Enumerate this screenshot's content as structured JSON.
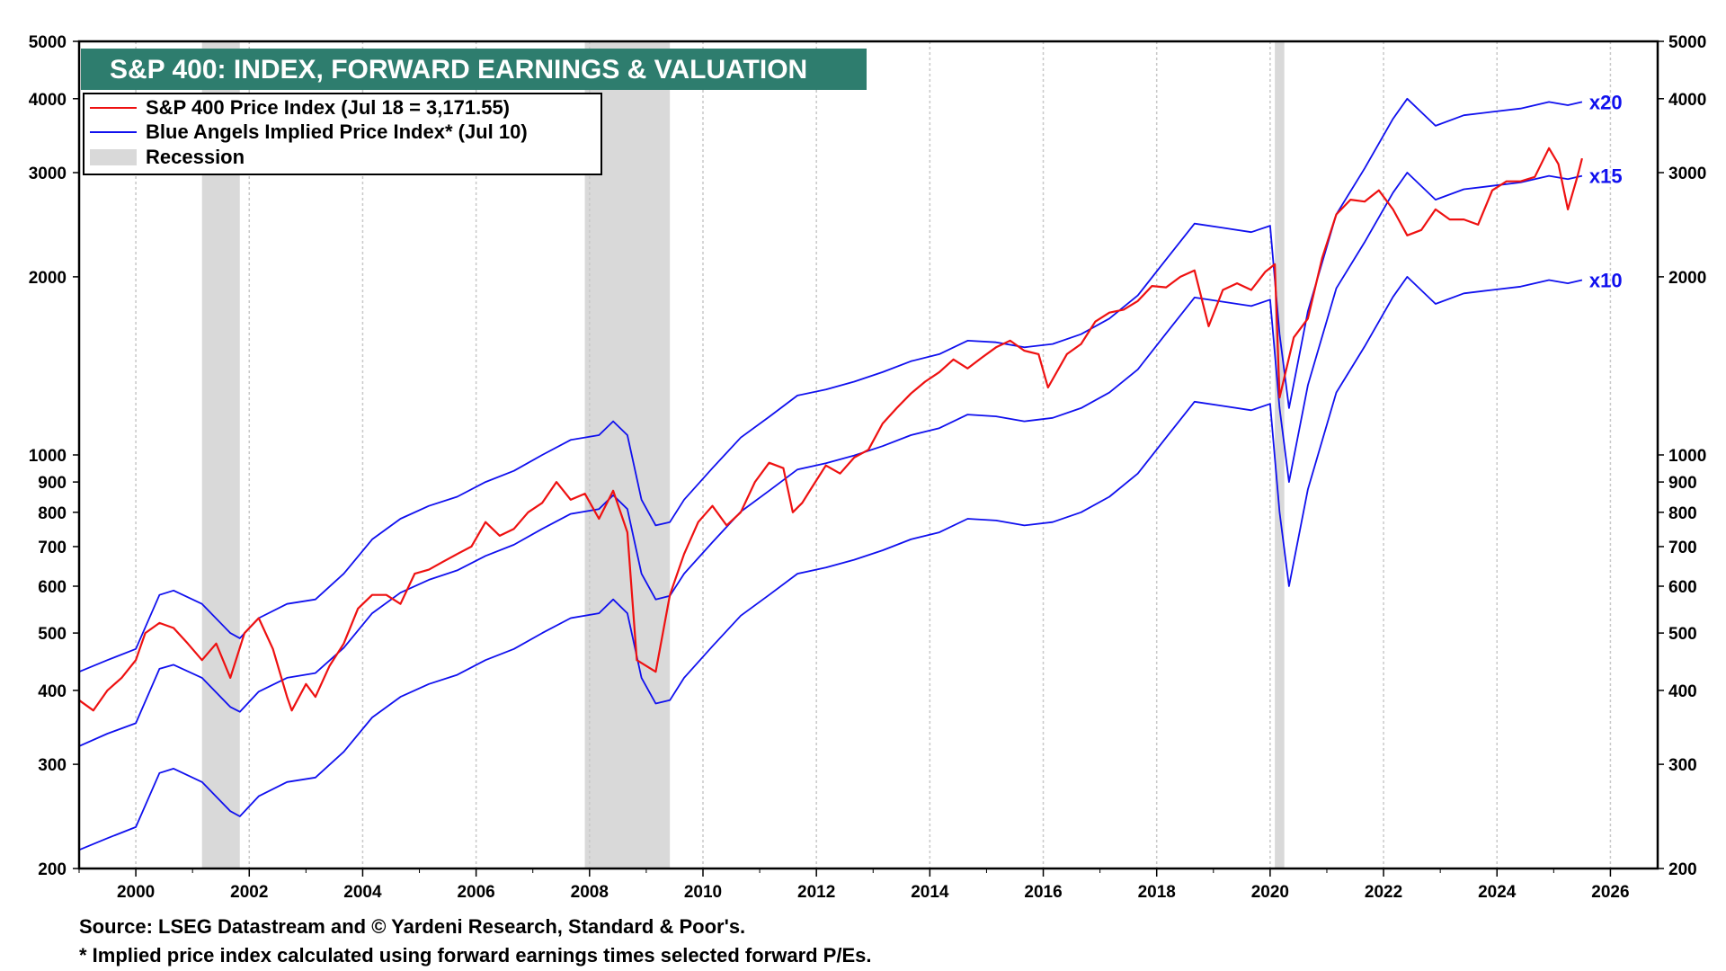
{
  "title": "S&P 400: INDEX, FORWARD EARNINGS & VALUATION",
  "colors": {
    "title_bg": "#2e7d6e",
    "price": "#ee1111",
    "implied": "#1010ee",
    "recession": "#d9d9d9",
    "grid": "#c8c8c8"
  },
  "legend": {
    "price_label": "S&P 400 Price Index (Jul 18 = 3,171.55)",
    "implied_label": "Blue Angels Implied Price Index* (Jul 10)",
    "recession_label": "Recession"
  },
  "footnotes": {
    "source": "Source: LSEG Datastream and © Yardeni Research, Standard & Poor's.",
    "note": "* Implied price index calculated using forward earnings times selected forward P/Es."
  },
  "chart_data": {
    "type": "line",
    "title": "S&P 400: INDEX, FORWARD EARNINGS & VALUATION",
    "y_scale": "log",
    "ylim": [
      200,
      5000
    ],
    "xlim": [
      "1999-01",
      "2026-11"
    ],
    "y_ticks": [
      200,
      300,
      400,
      500,
      600,
      700,
      800,
      900,
      1000,
      2000,
      3000,
      4000,
      5000
    ],
    "x_ticks": [
      "2000",
      "2002",
      "2004",
      "2006",
      "2008",
      "2010",
      "2012",
      "2014",
      "2016",
      "2018",
      "2020",
      "2022",
      "2024",
      "2026"
    ],
    "grid": "vertical",
    "legend_position": "top-left",
    "recessions": [
      {
        "start": "2001-03",
        "end": "2001-11"
      },
      {
        "start": "2007-12",
        "end": "2009-06"
      },
      {
        "start": "2020-02",
        "end": "2020-04"
      }
    ],
    "series": [
      {
        "name": "S&P 400 Price Index (Jul 18 = 3,171.55)",
        "x": [
          "1999-01",
          "1999-04",
          "1999-07",
          "1999-10",
          "2000-01",
          "2000-03",
          "2000-06",
          "2000-09",
          "2000-12",
          "2001-03",
          "2001-06",
          "2001-09",
          "2001-12",
          "2002-03",
          "2002-06",
          "2002-09",
          "2002-10",
          "2003-01",
          "2003-03",
          "2003-06",
          "2003-09",
          "2003-12",
          "2004-03",
          "2004-06",
          "2004-09",
          "2004-12",
          "2005-03",
          "2005-06",
          "2005-09",
          "2005-12",
          "2006-03",
          "2006-06",
          "2006-09",
          "2006-12",
          "2007-03",
          "2007-06",
          "2007-09",
          "2007-12",
          "2008-03",
          "2008-06",
          "2008-09",
          "2008-11",
          "2009-03",
          "2009-06",
          "2009-09",
          "2009-12",
          "2010-03",
          "2010-06",
          "2010-09",
          "2010-12",
          "2011-03",
          "2011-06",
          "2011-08",
          "2011-10",
          "2011-12",
          "2012-03",
          "2012-06",
          "2012-09",
          "2012-12",
          "2013-03",
          "2013-06",
          "2013-09",
          "2013-12",
          "2014-03",
          "2014-06",
          "2014-09",
          "2014-12",
          "2015-03",
          "2015-06",
          "2015-09",
          "2015-12",
          "2016-02",
          "2016-06",
          "2016-09",
          "2016-12",
          "2017-03",
          "2017-06",
          "2017-09",
          "2017-12",
          "2018-03",
          "2018-06",
          "2018-09",
          "2018-12",
          "2019-03",
          "2019-06",
          "2019-09",
          "2019-12",
          "2020-02",
          "2020-03",
          "2020-06",
          "2020-09",
          "2020-12",
          "2021-03",
          "2021-06",
          "2021-09",
          "2021-12",
          "2022-03",
          "2022-06",
          "2022-09",
          "2022-12",
          "2023-03",
          "2023-06",
          "2023-09",
          "2023-12",
          "2024-03",
          "2024-06",
          "2024-09",
          "2024-12",
          "2025-02",
          "2025-04",
          "2025-06",
          "2025-07"
        ],
        "y": [
          385,
          370,
          400,
          420,
          450,
          500,
          520,
          510,
          480,
          450,
          480,
          420,
          500,
          530,
          470,
          390,
          370,
          410,
          390,
          440,
          480,
          550,
          580,
          580,
          560,
          630,
          640,
          660,
          680,
          700,
          770,
          730,
          750,
          800,
          830,
          900,
          840,
          860,
          780,
          870,
          740,
          450,
          430,
          580,
          680,
          770,
          820,
          760,
          800,
          900,
          970,
          950,
          800,
          830,
          880,
          960,
          930,
          990,
          1020,
          1130,
          1200,
          1270,
          1330,
          1380,
          1450,
          1400,
          1460,
          1520,
          1560,
          1500,
          1480,
          1300,
          1480,
          1540,
          1680,
          1740,
          1760,
          1820,
          1930,
          1920,
          2000,
          2050,
          1650,
          1900,
          1950,
          1900,
          2040,
          2100,
          1250,
          1580,
          1700,
          2150,
          2550,
          2700,
          2680,
          2800,
          2600,
          2350,
          2400,
          2600,
          2500,
          2500,
          2450,
          2800,
          2900,
          2900,
          2950,
          3300,
          3100,
          2600,
          2950,
          3171.55
        ]
      },
      {
        "name": "Blue Angels Implied Price Index* (Jul 10) x20",
        "x": [
          "1999-01",
          "1999-07",
          "2000-01",
          "2000-06",
          "2000-09",
          "2001-03",
          "2001-09",
          "2001-11",
          "2002-03",
          "2002-09",
          "2003-03",
          "2003-09",
          "2004-03",
          "2004-09",
          "2005-03",
          "2005-09",
          "2006-03",
          "2006-09",
          "2007-03",
          "2007-09",
          "2008-03",
          "2008-06",
          "2008-09",
          "2008-12",
          "2009-03",
          "2009-06",
          "2009-09",
          "2010-03",
          "2010-09",
          "2011-03",
          "2011-09",
          "2012-03",
          "2012-09",
          "2013-03",
          "2013-09",
          "2014-03",
          "2014-09",
          "2015-03",
          "2015-09",
          "2016-03",
          "2016-09",
          "2017-03",
          "2017-09",
          "2018-03",
          "2018-09",
          "2019-03",
          "2019-09",
          "2020-01",
          "2020-03",
          "2020-05",
          "2020-09",
          "2021-03",
          "2021-09",
          "2022-03",
          "2022-06",
          "2022-12",
          "2023-06",
          "2023-12",
          "2024-06",
          "2024-12",
          "2025-04",
          "2025-07"
        ],
        "y": [
          430,
          450,
          470,
          580,
          590,
          560,
          500,
          490,
          530,
          560,
          570,
          630,
          720,
          780,
          820,
          850,
          900,
          940,
          1000,
          1060,
          1080,
          1140,
          1080,
          840,
          760,
          770,
          840,
          950,
          1070,
          1160,
          1260,
          1290,
          1330,
          1380,
          1440,
          1480,
          1560,
          1550,
          1520,
          1540,
          1600,
          1700,
          1860,
          2140,
          2460,
          2420,
          2380,
          2440,
          1600,
          1200,
          1750,
          2550,
          3050,
          3700,
          4000,
          3600,
          3750,
          3800,
          3850,
          3950,
          3900,
          3950
        ]
      },
      {
        "name": "Blue Angels Implied Price Index* (Jul 10) x15",
        "x": [
          "1999-01",
          "1999-07",
          "2000-01",
          "2000-06",
          "2000-09",
          "2001-03",
          "2001-09",
          "2001-11",
          "2002-03",
          "2002-09",
          "2003-03",
          "2003-09",
          "2004-03",
          "2004-09",
          "2005-03",
          "2005-09",
          "2006-03",
          "2006-09",
          "2007-03",
          "2007-09",
          "2008-03",
          "2008-06",
          "2008-09",
          "2008-12",
          "2009-03",
          "2009-06",
          "2009-09",
          "2010-03",
          "2010-09",
          "2011-03",
          "2011-09",
          "2012-03",
          "2012-09",
          "2013-03",
          "2013-09",
          "2014-03",
          "2014-09",
          "2015-03",
          "2015-09",
          "2016-03",
          "2016-09",
          "2017-03",
          "2017-09",
          "2018-03",
          "2018-09",
          "2019-03",
          "2019-09",
          "2020-01",
          "2020-03",
          "2020-05",
          "2020-09",
          "2021-03",
          "2021-09",
          "2022-03",
          "2022-06",
          "2022-12",
          "2023-06",
          "2023-12",
          "2024-06",
          "2024-12",
          "2025-04",
          "2025-07"
        ],
        "y": [
          322,
          338,
          352,
          435,
          442,
          420,
          375,
          368,
          398,
          420,
          428,
          472,
          540,
          585,
          615,
          638,
          675,
          705,
          750,
          795,
          810,
          855,
          810,
          630,
          570,
          578,
          630,
          712,
          802,
          870,
          945,
          968,
          998,
          1035,
          1080,
          1110,
          1170,
          1162,
          1140,
          1155,
          1200,
          1275,
          1395,
          1605,
          1845,
          1815,
          1785,
          1830,
          1200,
          900,
          1312,
          1912,
          2288,
          2775,
          3000,
          2700,
          2812,
          2850,
          2888,
          2962,
          2925,
          2962
        ]
      },
      {
        "name": "Blue Angels Implied Price Index* (Jul 10) x10",
        "x": [
          "1999-01",
          "1999-07",
          "2000-01",
          "2000-06",
          "2000-09",
          "2001-03",
          "2001-09",
          "2001-11",
          "2002-03",
          "2002-09",
          "2003-03",
          "2003-09",
          "2004-03",
          "2004-09",
          "2005-03",
          "2005-09",
          "2006-03",
          "2006-09",
          "2007-03",
          "2007-09",
          "2008-03",
          "2008-06",
          "2008-09",
          "2008-12",
          "2009-03",
          "2009-06",
          "2009-09",
          "2010-03",
          "2010-09",
          "2011-03",
          "2011-09",
          "2012-03",
          "2012-09",
          "2013-03",
          "2013-09",
          "2014-03",
          "2014-09",
          "2015-03",
          "2015-09",
          "2016-03",
          "2016-09",
          "2017-03",
          "2017-09",
          "2018-03",
          "2018-09",
          "2019-03",
          "2019-09",
          "2020-01",
          "2020-03",
          "2020-05",
          "2020-09",
          "2021-03",
          "2021-09",
          "2022-03",
          "2022-06",
          "2022-12",
          "2023-06",
          "2023-12",
          "2024-06",
          "2024-12",
          "2025-04",
          "2025-07"
        ],
        "y": [
          215,
          225,
          235,
          290,
          295,
          280,
          250,
          245,
          265,
          280,
          285,
          315,
          360,
          390,
          410,
          425,
          450,
          470,
          500,
          530,
          540,
          570,
          540,
          420,
          380,
          385,
          420,
          475,
          535,
          580,
          630,
          645,
          665,
          690,
          720,
          740,
          780,
          775,
          760,
          770,
          800,
          850,
          930,
          1070,
          1230,
          1210,
          1190,
          1220,
          800,
          600,
          875,
          1275,
          1525,
          1850,
          2000,
          1800,
          1875,
          1900,
          1925,
          1975,
          1950,
          1975
        ]
      }
    ],
    "multiplier_labels": [
      "x20",
      "x15",
      "x10"
    ]
  }
}
